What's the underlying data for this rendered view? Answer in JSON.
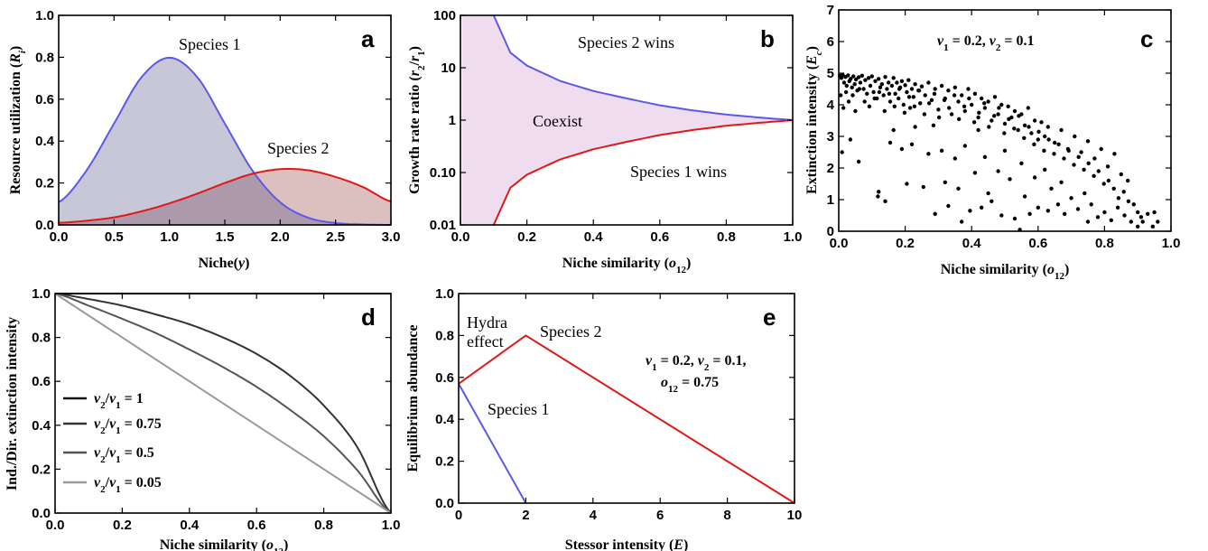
{
  "colors": {
    "species1": "#5a5ae6",
    "species2": "#e01818",
    "species1_fill": "#c4c4d6",
    "species2_fill": "#d6b4b4",
    "overlap_fill": "#a896ab",
    "coexist_fill": "#f0dcef",
    "black": "#1a1a1a"
  },
  "chart_data": [
    {
      "panel": "a",
      "type": "area",
      "xlabel": "Niche(y)",
      "ylabel": "Resource utilization (Ri)",
      "xlim": [
        0,
        3
      ],
      "ylim": [
        0,
        1
      ],
      "xticks": [
        "0.0",
        "0.5",
        "1.0",
        "1.5",
        "2.0",
        "2.5",
        "3.0"
      ],
      "yticks": [
        "0.0",
        "0.2",
        "0.4",
        "0.6",
        "0.8",
        "1.0"
      ],
      "series": [
        {
          "name": "Species 1",
          "x": [
            0,
            0.25,
            0.5,
            0.75,
            1,
            1.25,
            1.5,
            1.75,
            2,
            2.25,
            2.5,
            2.75,
            3
          ],
          "values": [
            0.108,
            0.259,
            0.484,
            0.706,
            0.798,
            0.706,
            0.484,
            0.259,
            0.108,
            0.035,
            0.009,
            0.002,
            0.0
          ]
        },
        {
          "name": "Species 2",
          "x": [
            0,
            0.25,
            0.5,
            0.75,
            1,
            1.25,
            1.5,
            1.75,
            2,
            2.25,
            2.5,
            2.75,
            3
          ],
          "values": [
            0.01,
            0.02,
            0.036,
            0.065,
            0.103,
            0.149,
            0.2,
            0.244,
            0.266,
            0.261,
            0.229,
            0.18,
            0.112
          ]
        }
      ]
    },
    {
      "panel": "b",
      "type": "area",
      "xlabel": "Niche similarity (o12)",
      "ylabel": "Growth rate ratio (r2/r1)",
      "xlim": [
        0,
        1
      ],
      "ylim": [
        0.01,
        100
      ],
      "yscale": "log",
      "xticks": [
        "0.0",
        "0.2",
        "0.4",
        "0.6",
        "0.8",
        "1.0"
      ],
      "yticks": [
        "0.01",
        "0.10",
        "1",
        "10",
        "100"
      ],
      "annotations": [
        "Species 2 wins",
        "Coexist",
        "Species 1 wins"
      ],
      "series": [
        {
          "name": "Species 2 wins",
          "x": [
            0.1,
            0.15,
            0.2,
            0.3,
            0.4,
            0.5,
            0.6,
            0.7,
            0.8,
            0.9,
            1.0
          ],
          "values": [
            100,
            19.5,
            11.0,
            5.6,
            3.6,
            2.6,
            1.92,
            1.53,
            1.28,
            1.12,
            1.0
          ]
        },
        {
          "name": "Species 1 wins",
          "x": [
            0.1,
            0.15,
            0.2,
            0.3,
            0.4,
            0.5,
            0.6,
            0.7,
            0.8,
            0.9,
            1.0
          ],
          "values": [
            0.01,
            0.051,
            0.091,
            0.178,
            0.278,
            0.385,
            0.52,
            0.65,
            0.78,
            0.89,
            1.0
          ]
        }
      ]
    },
    {
      "panel": "c",
      "type": "scatter",
      "xlabel": "Niche similarity (o12)",
      "ylabel": "Extinction intensity (Ec)",
      "xlim": [
        0,
        1
      ],
      "ylim": [
        0,
        7
      ],
      "xticks": [
        "0.0",
        "0.2",
        "0.4",
        "0.6",
        "0.8",
        "1.0"
      ],
      "yticks": [
        "0",
        "1",
        "2",
        "3",
        "4",
        "5",
        "6",
        "7"
      ],
      "annotation": "v1 = 0.2, v2 = 0.1"
    },
    {
      "panel": "d",
      "type": "line",
      "xlabel": "Niche similarity (o12)",
      "ylabel": "Ind./Dir. extinction intensity",
      "xlim": [
        0,
        1
      ],
      "ylim": [
        0,
        1
      ],
      "xticks": [
        "0.0",
        "0.2",
        "0.4",
        "0.6",
        "0.8",
        "1.0"
      ],
      "yticks": [
        "0.0",
        "0.2",
        "0.4",
        "0.6",
        "0.8",
        "1.0"
      ],
      "legend_placement": "bottom-left",
      "series": [
        {
          "name": "v2/v1 = 1",
          "x": [
            0,
            1
          ],
          "values": [
            1,
            1
          ]
        },
        {
          "name": "v2/v1 = 0.75",
          "x": [
            0,
            0.1,
            0.2,
            0.3,
            0.4,
            0.5,
            0.6,
            0.7,
            0.8,
            0.9,
            1
          ],
          "values": [
            1,
            0.975,
            0.945,
            0.905,
            0.86,
            0.8,
            0.725,
            0.625,
            0.49,
            0.3,
            0
          ]
        },
        {
          "name": "v2/v1 = 0.5",
          "x": [
            0,
            0.1,
            0.2,
            0.3,
            0.4,
            0.5,
            0.6,
            0.7,
            0.8,
            0.9,
            1
          ],
          "values": [
            1,
            0.945,
            0.885,
            0.82,
            0.745,
            0.665,
            0.575,
            0.47,
            0.35,
            0.195,
            0
          ]
        },
        {
          "name": "v2/v1 = 0.05",
          "x": [
            0,
            1
          ],
          "values": [
            1,
            0
          ]
        }
      ]
    },
    {
      "panel": "e",
      "type": "line",
      "xlabel": "Stessor intensity (E)",
      "ylabel": "Equilibrium abundance",
      "xlim": [
        0,
        10
      ],
      "ylim": [
        0,
        1
      ],
      "xticks": [
        "0",
        "2",
        "4",
        "6",
        "8",
        "10"
      ],
      "yticks": [
        "0.0",
        "0.2",
        "0.4",
        "0.6",
        "0.8",
        "1.0"
      ],
      "annotations": [
        "Hydra",
        "effect"
      ],
      "parameters": [
        "v1 = 0.2, v2 = 0.1,",
        "o12 = 0.75"
      ],
      "series": [
        {
          "name": "Species 2",
          "x": [
            0,
            2,
            10
          ],
          "values": [
            0.57,
            0.8,
            0
          ]
        },
        {
          "name": "Species 1",
          "x": [
            0,
            2
          ],
          "values": [
            0.57,
            0
          ]
        }
      ]
    }
  ],
  "scatter_c": [
    [
      0.003,
      4.92
    ],
    [
      0.008,
      4.85
    ],
    [
      0.012,
      4.95
    ],
    [
      0.016,
      4.7
    ],
    [
      0.02,
      4.88
    ],
    [
      0.024,
      4.6
    ],
    [
      0.028,
      4.93
    ],
    [
      0.032,
      4.75
    ],
    [
      0.036,
      4.82
    ],
    [
      0.04,
      4.55
    ],
    [
      0.044,
      4.9
    ],
    [
      0.048,
      4.65
    ],
    [
      0.052,
      4.8
    ],
    [
      0.056,
      4.45
    ],
    [
      0.06,
      4.87
    ],
    [
      0.065,
      4.7
    ],
    [
      0.07,
      4.92
    ],
    [
      0.075,
      4.5
    ],
    [
      0.08,
      4.78
    ],
    [
      0.085,
      4.35
    ],
    [
      0.09,
      4.85
    ],
    [
      0.095,
      4.6
    ],
    [
      0.1,
      4.9
    ],
    [
      0.105,
      4.4
    ],
    [
      0.11,
      4.75
    ],
    [
      0.115,
      4.2
    ],
    [
      0.12,
      4.82
    ],
    [
      0.125,
      4.55
    ],
    [
      0.13,
      4.65
    ],
    [
      0.135,
      4.3
    ],
    [
      0.14,
      4.88
    ],
    [
      0.145,
      4.5
    ],
    [
      0.15,
      4.7
    ],
    [
      0.155,
      4.1
    ],
    [
      0.16,
      4.6
    ],
    [
      0.165,
      4.85
    ],
    [
      0.17,
      4.35
    ],
    [
      0.175,
      4.7
    ],
    [
      0.18,
      4.2
    ],
    [
      0.185,
      4.55
    ],
    [
      0.19,
      4.75
    ],
    [
      0.195,
      4.0
    ],
    [
      0.2,
      4.62
    ],
    [
      0.205,
      4.4
    ],
    [
      0.21,
      4.78
    ],
    [
      0.215,
      3.9
    ],
    [
      0.22,
      4.5
    ],
    [
      0.225,
      4.25
    ],
    [
      0.23,
      4.65
    ],
    [
      0.24,
      4.45
    ],
    [
      0.245,
      4.05
    ],
    [
      0.25,
      4.58
    ],
    [
      0.26,
      4.3
    ],
    [
      0.27,
      4.7
    ],
    [
      0.28,
      4.15
    ],
    [
      0.29,
      4.5
    ],
    [
      0.3,
      3.85
    ],
    [
      0.31,
      4.6
    ],
    [
      0.32,
      4.2
    ],
    [
      0.33,
      4.45
    ],
    [
      0.34,
      3.7
    ],
    [
      0.35,
      4.55
    ],
    [
      0.36,
      4.1
    ],
    [
      0.37,
      4.3
    ],
    [
      0.38,
      3.8
    ],
    [
      0.39,
      4.5
    ],
    [
      0.4,
      4.0
    ],
    [
      0.41,
      4.35
    ],
    [
      0.42,
      3.6
    ],
    [
      0.43,
      4.2
    ],
    [
      0.44,
      3.9
    ],
    [
      0.45,
      4.1
    ],
    [
      0.46,
      3.5
    ],
    [
      0.47,
      4.25
    ],
    [
      0.48,
      3.7
    ],
    [
      0.49,
      4.0
    ],
    [
      0.5,
      3.4
    ],
    [
      0.51,
      3.95
    ],
    [
      0.52,
      3.6
    ],
    [
      0.53,
      3.8
    ],
    [
      0.54,
      3.2
    ],
    [
      0.55,
      3.7
    ],
    [
      0.56,
      3.35
    ],
    [
      0.57,
      3.9
    ],
    [
      0.58,
      3.1
    ],
    [
      0.59,
      3.5
    ],
    [
      0.6,
      2.9
    ],
    [
      0.61,
      3.45
    ],
    [
      0.62,
      3.0
    ],
    [
      0.63,
      3.3
    ],
    [
      0.65,
      2.8
    ],
    [
      0.67,
      3.2
    ],
    [
      0.69,
      2.6
    ],
    [
      0.71,
      3.0
    ],
    [
      0.73,
      2.5
    ],
    [
      0.75,
      2.85
    ],
    [
      0.77,
      2.3
    ],
    [
      0.79,
      2.6
    ],
    [
      0.81,
      2.05
    ],
    [
      0.83,
      2.45
    ],
    [
      0.85,
      1.8
    ],
    [
      0.87,
      1.6
    ],
    [
      0.006,
      4.3
    ],
    [
      0.014,
      3.9
    ],
    [
      0.022,
      4.4
    ],
    [
      0.03,
      4.1
    ],
    [
      0.042,
      4.3
    ],
    [
      0.05,
      3.8
    ],
    [
      0.062,
      4.5
    ],
    [
      0.078,
      4.1
    ],
    [
      0.092,
      3.95
    ],
    [
      0.108,
      4.2
    ],
    [
      0.122,
      4.4
    ],
    [
      0.138,
      3.8
    ],
    [
      0.152,
      4.35
    ],
    [
      0.168,
      3.95
    ],
    [
      0.182,
      4.5
    ],
    [
      0.198,
      3.75
    ],
    [
      0.212,
      4.25
    ],
    [
      0.228,
      3.95
    ],
    [
      0.242,
      4.45
    ],
    [
      0.258,
      3.7
    ],
    [
      0.272,
      4.05
    ],
    [
      0.288,
      4.35
    ],
    [
      0.302,
      3.6
    ],
    [
      0.318,
      4.15
    ],
    [
      0.332,
      3.9
    ],
    [
      0.348,
      4.3
    ],
    [
      0.362,
      3.55
    ],
    [
      0.378,
      3.95
    ],
    [
      0.392,
      4.2
    ],
    [
      0.408,
      3.45
    ],
    [
      0.422,
      3.75
    ],
    [
      0.438,
      4.05
    ],
    [
      0.452,
      3.3
    ],
    [
      0.468,
      3.65
    ],
    [
      0.482,
      3.9
    ],
    [
      0.498,
      3.1
    ],
    [
      0.512,
      3.55
    ],
    [
      0.528,
      3.25
    ],
    [
      0.542,
      3.65
    ],
    [
      0.558,
      2.95
    ],
    [
      0.572,
      3.3
    ],
    [
      0.588,
      2.75
    ],
    [
      0.602,
      3.15
    ],
    [
      0.618,
      2.55
    ],
    [
      0.632,
      2.9
    ],
    [
      0.648,
      2.45
    ],
    [
      0.662,
      2.75
    ],
    [
      0.678,
      2.3
    ],
    [
      0.692,
      2.55
    ],
    [
      0.708,
      2.1
    ],
    [
      0.722,
      2.35
    ],
    [
      0.738,
      1.95
    ],
    [
      0.752,
      2.15
    ],
    [
      0.768,
      1.75
    ],
    [
      0.782,
      1.9
    ],
    [
      0.798,
      1.5
    ],
    [
      0.812,
      1.6
    ],
    [
      0.828,
      1.35
    ],
    [
      0.842,
      1.05
    ],
    [
      0.858,
      1.25
    ],
    [
      0.872,
      0.95
    ],
    [
      0.888,
      0.85
    ],
    [
      0.9,
      0.6
    ],
    [
      0.91,
      0.45
    ],
    [
      0.01,
      2.5
    ],
    [
      0.035,
      2.9
    ],
    [
      0.06,
      2.2
    ],
    [
      0.12,
      1.25
    ],
    [
      0.118,
      1.1
    ],
    [
      0.14,
      0.95
    ],
    [
      0.155,
      2.8
    ],
    [
      0.165,
      3.2
    ],
    [
      0.19,
      2.6
    ],
    [
      0.205,
      1.5
    ],
    [
      0.22,
      2.75
    ],
    [
      0.23,
      3.3
    ],
    [
      0.255,
      1.4
    ],
    [
      0.27,
      2.45
    ],
    [
      0.285,
      3.35
    ],
    [
      0.29,
      0.55
    ],
    [
      0.31,
      2.55
    ],
    [
      0.32,
      1.55
    ],
    [
      0.33,
      0.8
    ],
    [
      0.35,
      2.3
    ],
    [
      0.36,
      1.35
    ],
    [
      0.37,
      0.3
    ],
    [
      0.38,
      2.7
    ],
    [
      0.395,
      0.65
    ],
    [
      0.41,
      1.85
    ],
    [
      0.42,
      3.2
    ],
    [
      0.43,
      0.75
    ],
    [
      0.44,
      2.35
    ],
    [
      0.45,
      1.2
    ],
    [
      0.46,
      0.95
    ],
    [
      0.48,
      1.9
    ],
    [
      0.49,
      0.5
    ],
    [
      0.5,
      2.55
    ],
    [
      0.515,
      1.65
    ],
    [
      0.53,
      0.4
    ],
    [
      0.545,
      0.05
    ],
    [
      0.55,
      2.15
    ],
    [
      0.56,
      1.1
    ],
    [
      0.575,
      0.55
    ],
    [
      0.59,
      1.7
    ],
    [
      0.6,
      0.75
    ],
    [
      0.62,
      1.95
    ],
    [
      0.63,
      0.65
    ],
    [
      0.64,
      1.35
    ],
    [
      0.66,
      0.85
    ],
    [
      0.67,
      1.55
    ],
    [
      0.68,
      0.55
    ],
    [
      0.7,
      1.05
    ],
    [
      0.72,
      0.7
    ],
    [
      0.74,
      1.2
    ],
    [
      0.75,
      0.3
    ],
    [
      0.76,
      0.85
    ],
    [
      0.78,
      0.45
    ],
    [
      0.8,
      0.6
    ],
    [
      0.82,
      0.35
    ],
    [
      0.84,
      0.75
    ],
    [
      0.86,
      0.5
    ],
    [
      0.88,
      0.3
    ],
    [
      0.9,
      0.15
    ],
    [
      0.915,
      0.3
    ],
    [
      0.93,
      0.55
    ],
    [
      0.945,
      0.15
    ],
    [
      0.95,
      0.6
    ],
    [
      0.96,
      0.3
    ]
  ]
}
